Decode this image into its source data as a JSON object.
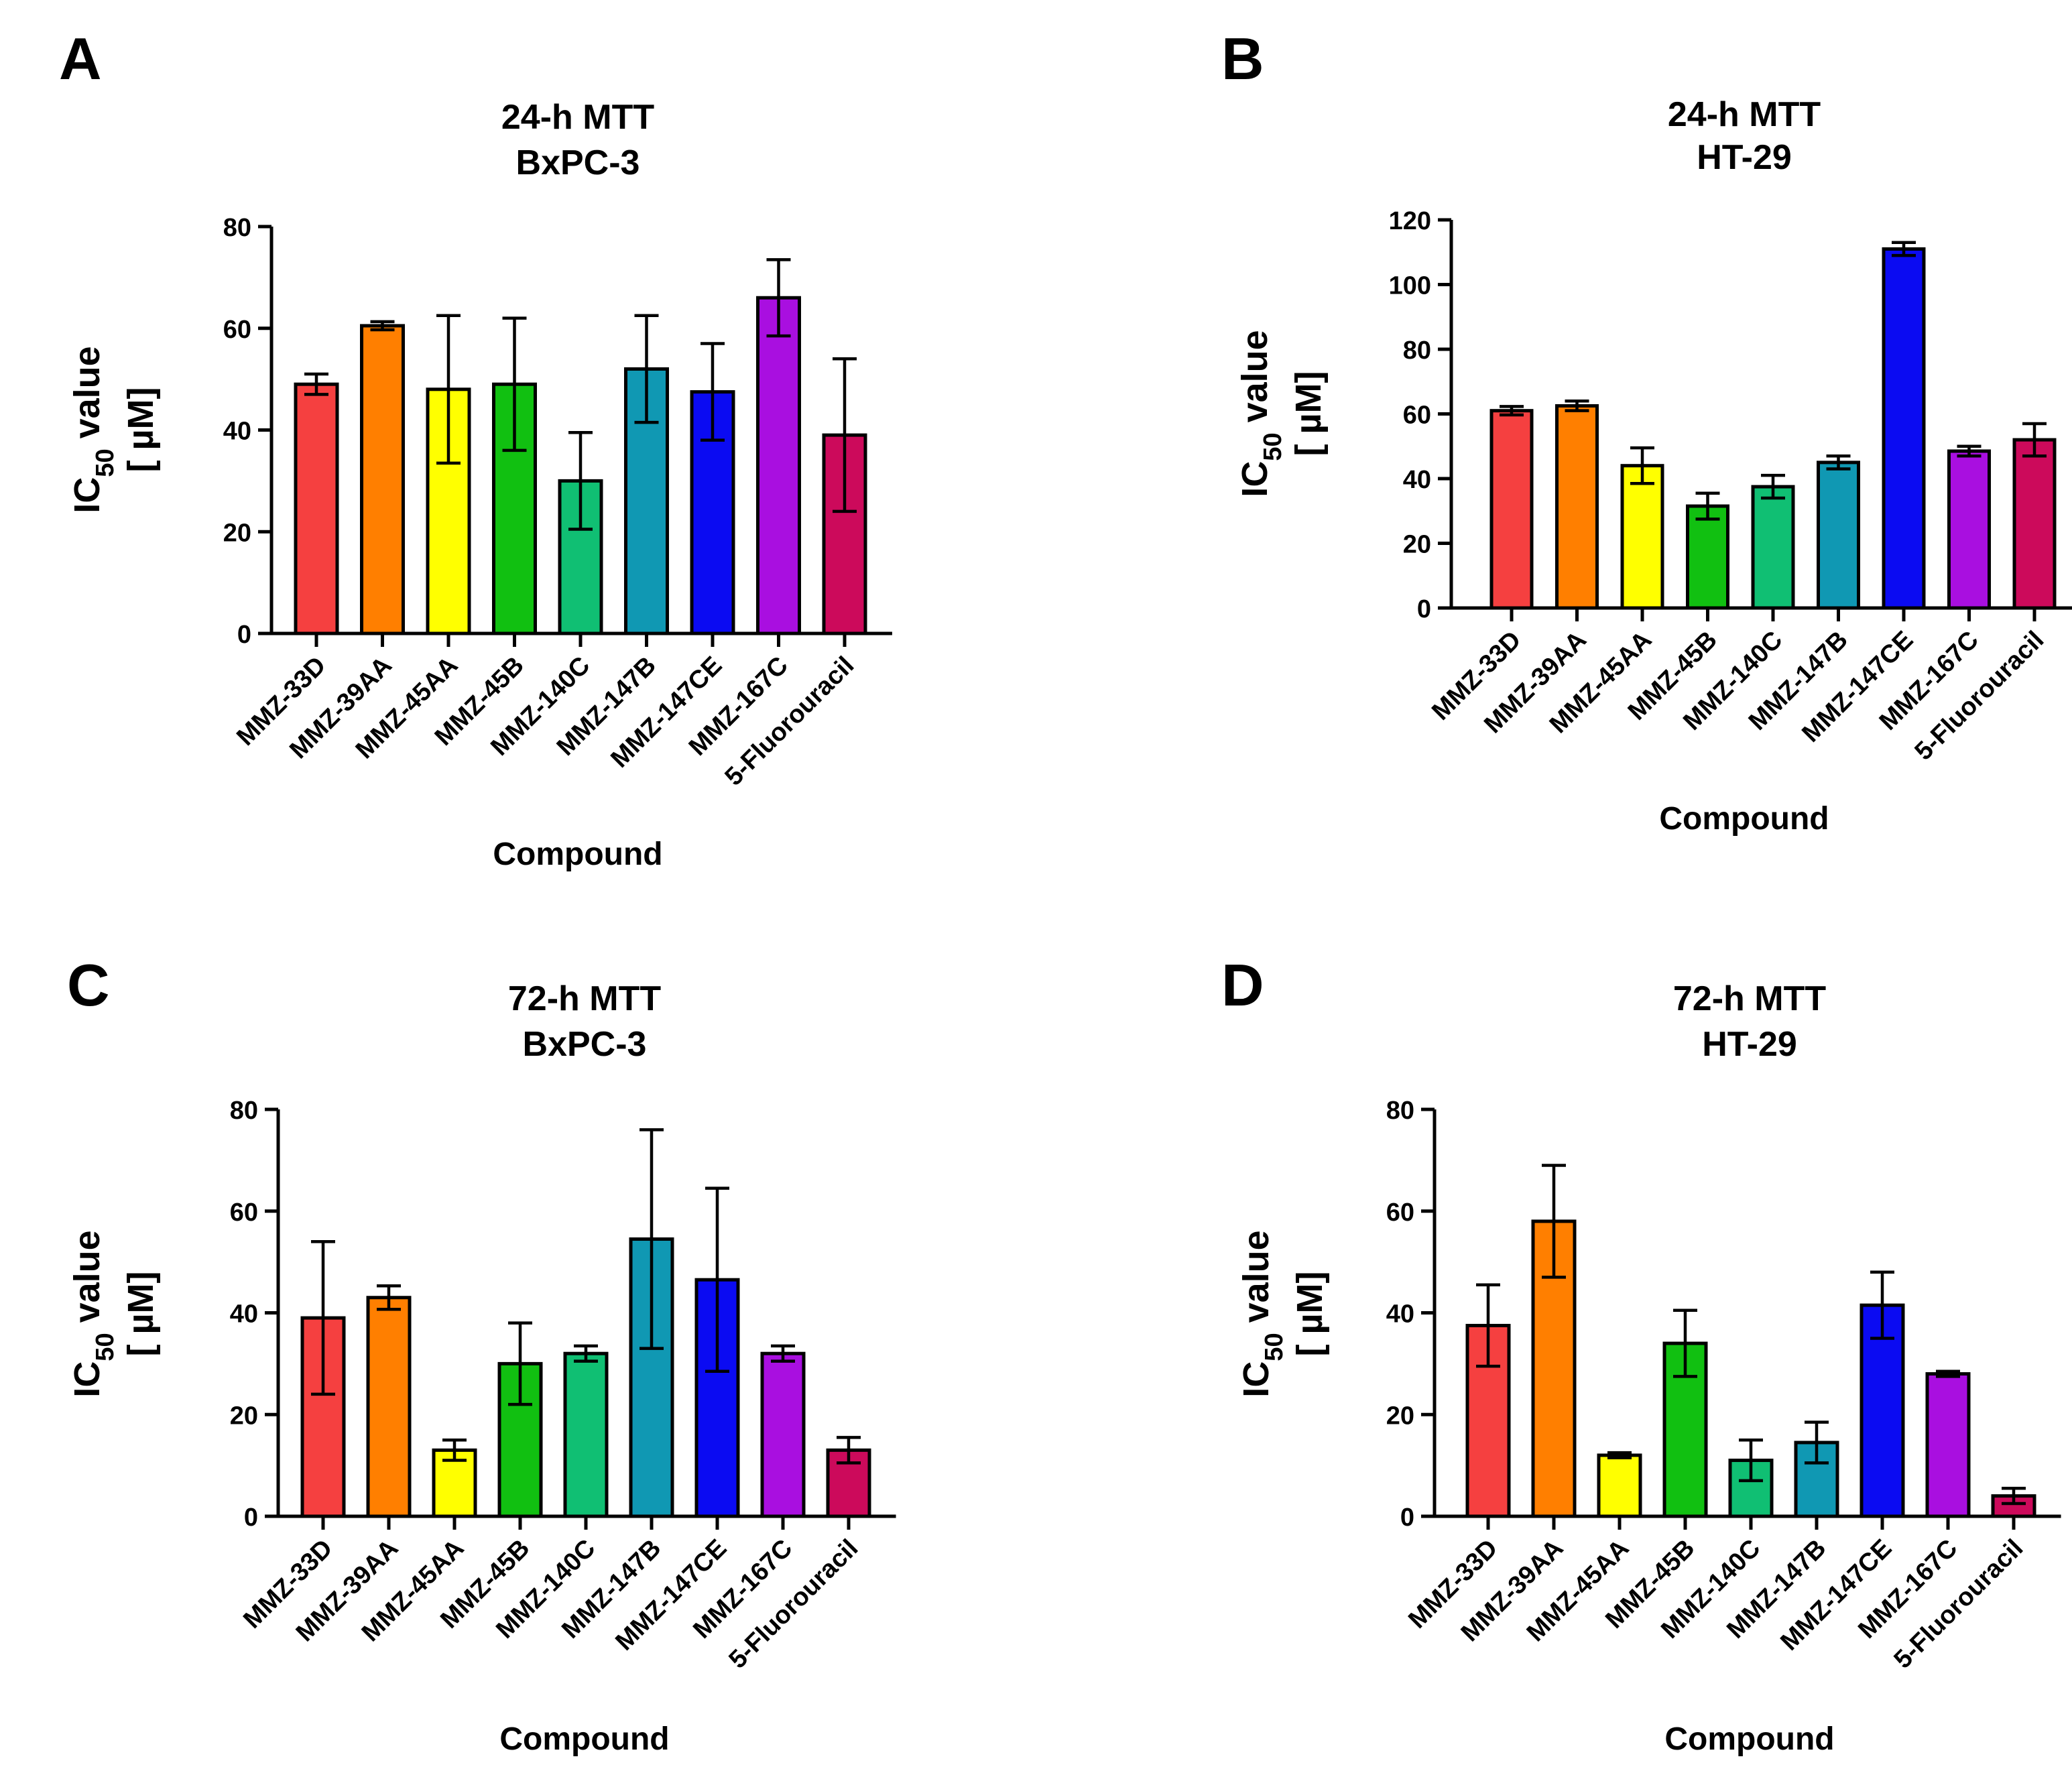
{
  "figure": {
    "panels": [
      {
        "letter": "A"
      },
      {
        "letter": "B"
      },
      {
        "letter": "C"
      },
      {
        "letter": "D"
      }
    ]
  },
  "chart_data": [
    {
      "type": "bar",
      "panel": "A",
      "title": [
        "24-h MTT",
        "BxPC-3"
      ],
      "xlabel": "Compound",
      "ylabel": {
        "main": "IC",
        "sub": "50",
        "rest": " value",
        "unit": "[ µM]"
      },
      "ylim": [
        0,
        80
      ],
      "yticks": [
        0,
        20,
        40,
        60,
        80
      ],
      "categories": [
        "MMZ-33D",
        "MMZ-39AA",
        "MMZ-45AA",
        "MMZ-45B",
        "MMZ-140C",
        "MMZ-147B",
        "MMZ-147CE",
        "MMZ-167C",
        "5-Fluorouracil"
      ],
      "values": [
        49,
        60.5,
        48,
        49,
        30,
        52,
        47.5,
        66,
        39
      ],
      "errors": [
        2,
        0.8,
        14.5,
        13,
        9.5,
        10.5,
        9.5,
        7.5,
        15
      ],
      "colors": [
        "#f54040",
        "#ff7f00",
        "#ffff00",
        "#11c011",
        "#10bf73",
        "#1098b3",
        "#0b0bf2",
        "#a90fe0",
        "#cc0a5b"
      ]
    },
    {
      "type": "bar",
      "panel": "B",
      "title": [
        "24-h MTT",
        "HT-29"
      ],
      "xlabel": "Compound",
      "ylabel": {
        "main": "IC",
        "sub": "50",
        "rest": " value",
        "unit": "[ µM]"
      },
      "ylim": [
        0,
        120
      ],
      "yticks": [
        0,
        20,
        40,
        60,
        80,
        100,
        120
      ],
      "categories": [
        "MMZ-33D",
        "MMZ-39AA",
        "MMZ-45AA",
        "MMZ-45B",
        "MMZ-140C",
        "MMZ-147B",
        "MMZ-147CE",
        "MMZ-167C",
        "5-Fluorouracil"
      ],
      "values": [
        61,
        62.5,
        44,
        31.5,
        37.5,
        45,
        111,
        48.5,
        52
      ],
      "errors": [
        1.3,
        1.5,
        5.5,
        4,
        3.5,
        2,
        2,
        1.5,
        5
      ],
      "colors": [
        "#f54040",
        "#ff7f00",
        "#ffff00",
        "#11c011",
        "#10bf73",
        "#1098b3",
        "#0b0bf2",
        "#a90fe0",
        "#cc0a5b"
      ]
    },
    {
      "type": "bar",
      "panel": "C",
      "title": [
        "72-h MTT",
        "BxPC-3"
      ],
      "xlabel": "Compound",
      "ylabel": {
        "main": "IC",
        "sub": "50",
        "rest": " value",
        "unit": "[ µM]"
      },
      "ylim": [
        0,
        80
      ],
      "yticks": [
        0,
        20,
        40,
        60,
        80
      ],
      "categories": [
        "MMZ-33D",
        "MMZ-39AA",
        "MMZ-45AA",
        "MMZ-45B",
        "MMZ-140C",
        "MMZ-147B",
        "MMZ-147CE",
        "MMZ-167C",
        "5-Fluorouracil"
      ],
      "values": [
        39,
        43,
        13,
        30,
        32,
        54.5,
        46.5,
        32,
        13
      ],
      "errors": [
        15,
        2.3,
        2,
        8,
        1.5,
        21.5,
        18,
        1.5,
        2.5
      ],
      "colors": [
        "#f54040",
        "#ff7f00",
        "#ffff00",
        "#11c011",
        "#10bf73",
        "#1098b3",
        "#0b0bf2",
        "#a90fe0",
        "#cc0a5b"
      ]
    },
    {
      "type": "bar",
      "panel": "D",
      "title": [
        "72-h MTT",
        "HT-29"
      ],
      "xlabel": "Compound",
      "ylabel": {
        "main": "IC",
        "sub": "50",
        "rest": " value",
        "unit": "[ µM]"
      },
      "ylim": [
        0,
        80
      ],
      "yticks": [
        0,
        20,
        40,
        60,
        80
      ],
      "categories": [
        "MMZ-33D",
        "MMZ-39AA",
        "MMZ-45AA",
        "MMZ-45B",
        "MMZ-140C",
        "MMZ-147B",
        "MMZ-147CE",
        "MMZ-167C",
        "5-Fluorouracil"
      ],
      "values": [
        37.5,
        58,
        12,
        34,
        11,
        14.5,
        41.5,
        28,
        4
      ],
      "errors": [
        8,
        11,
        0.5,
        6.5,
        4,
        4,
        6.5,
        0.5,
        1.5
      ],
      "colors": [
        "#f54040",
        "#ff7f00",
        "#ffff00",
        "#11c011",
        "#10bf73",
        "#1098b3",
        "#0b0bf2",
        "#a90fe0",
        "#cc0a5b"
      ]
    }
  ]
}
